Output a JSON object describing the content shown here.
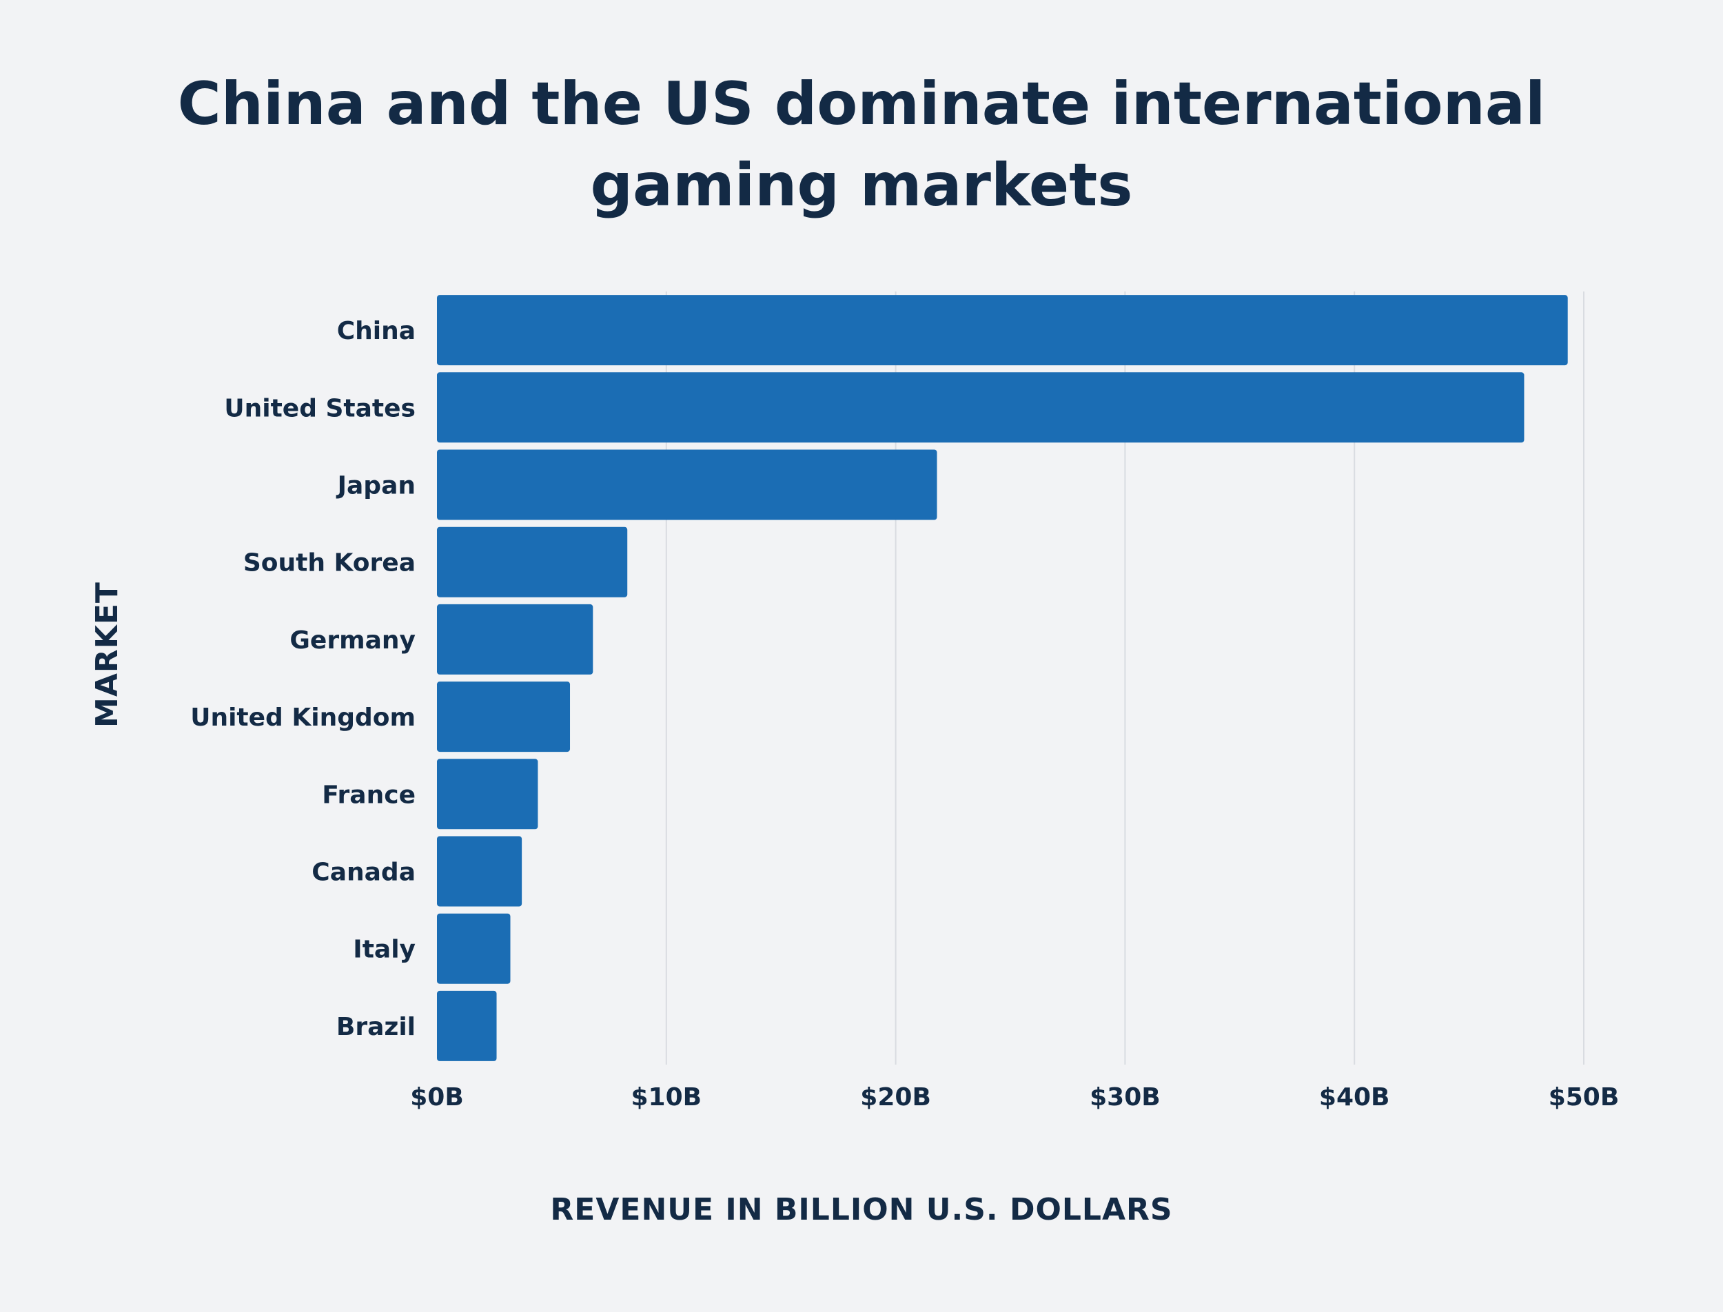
{
  "chart_data": {
    "type": "bar",
    "orientation": "horizontal",
    "title": [
      "China and the US dominate international",
      "gaming markets"
    ],
    "xlabel": "REVENUE IN BILLION U.S. DOLLARS",
    "ylabel": "MARKET",
    "categories": [
      "China",
      "United States",
      "Japan",
      "South Korea",
      "Germany",
      "United Kingdom",
      "France",
      "Canada",
      "Italy",
      "Brazil"
    ],
    "values": [
      49.3,
      47.4,
      21.8,
      8.3,
      6.8,
      5.8,
      4.4,
      3.7,
      3.2,
      2.6
    ],
    "xlim": [
      0,
      50
    ],
    "x_ticks": [
      0,
      10,
      20,
      30,
      40,
      50
    ],
    "x_tick_labels": [
      "$0B",
      "$10B",
      "$20B",
      "$30B",
      "$40B",
      "$50B"
    ],
    "grid": "vertical",
    "bar_color": "#1b6db4"
  }
}
